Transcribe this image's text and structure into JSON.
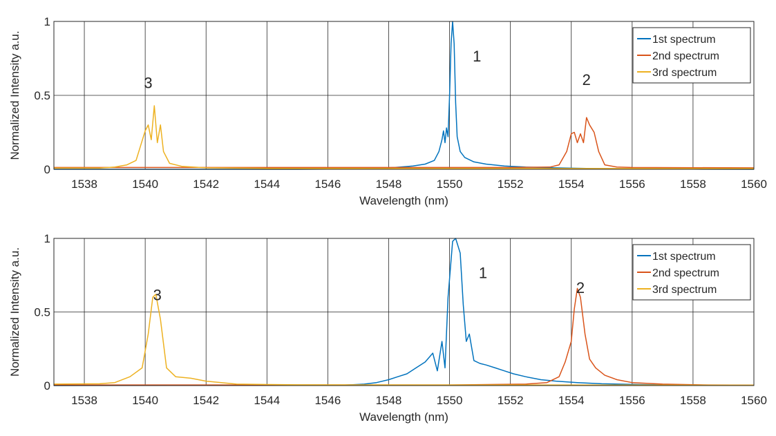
{
  "chart_data": [
    {
      "type": "line",
      "xlabel": "Wavelength (nm)",
      "ylabel": "Normalized Intensity a.u.",
      "xlim": [
        1537,
        1560
      ],
      "ylim": [
        0,
        1
      ],
      "xticks": [
        1538,
        1540,
        1542,
        1544,
        1546,
        1548,
        1550,
        1552,
        1554,
        1556,
        1558,
        1560
      ],
      "yticks": [
        0,
        0.5,
        1
      ],
      "ytick_labels": [
        "0",
        "0.5",
        "1"
      ],
      "grid": true,
      "legend_position": "top-right",
      "series": [
        {
          "name": "1st spectrum",
          "color": "#0072BD",
          "points": [
            [
              1537,
              0.0
            ],
            [
              1545,
              0.0
            ],
            [
              1546.5,
              0.002
            ],
            [
              1547.5,
              0.006
            ],
            [
              1548.2,
              0.012
            ],
            [
              1548.8,
              0.022
            ],
            [
              1549.2,
              0.035
            ],
            [
              1549.5,
              0.06
            ],
            [
              1549.65,
              0.12
            ],
            [
              1549.75,
              0.2
            ],
            [
              1549.8,
              0.26
            ],
            [
              1549.85,
              0.18
            ],
            [
              1549.9,
              0.28
            ],
            [
              1549.95,
              0.22
            ],
            [
              1550.0,
              0.5
            ],
            [
              1550.05,
              0.85
            ],
            [
              1550.1,
              1.0
            ],
            [
              1550.15,
              0.85
            ],
            [
              1550.2,
              0.45
            ],
            [
              1550.25,
              0.22
            ],
            [
              1550.35,
              0.12
            ],
            [
              1550.5,
              0.08
            ],
            [
              1550.8,
              0.05
            ],
            [
              1551.2,
              0.035
            ],
            [
              1551.8,
              0.022
            ],
            [
              1552.5,
              0.015
            ],
            [
              1553.5,
              0.01
            ],
            [
              1554.5,
              0.006
            ],
            [
              1556,
              0.003
            ],
            [
              1558,
              0.001
            ],
            [
              1560,
              0.0
            ]
          ]
        },
        {
          "name": "2nd spectrum",
          "color": "#D95319",
          "points": [
            [
              1537,
              0.012
            ],
            [
              1548,
              0.012
            ],
            [
              1552,
              0.012
            ],
            [
              1553.3,
              0.015
            ],
            [
              1553.6,
              0.03
            ],
            [
              1553.85,
              0.12
            ],
            [
              1554.0,
              0.24
            ],
            [
              1554.1,
              0.25
            ],
            [
              1554.2,
              0.18
            ],
            [
              1554.3,
              0.24
            ],
            [
              1554.4,
              0.18
            ],
            [
              1554.5,
              0.35
            ],
            [
              1554.6,
              0.3
            ],
            [
              1554.75,
              0.25
            ],
            [
              1554.9,
              0.12
            ],
            [
              1555.1,
              0.03
            ],
            [
              1555.5,
              0.015
            ],
            [
              1556,
              0.012
            ],
            [
              1560,
              0.01
            ]
          ]
        },
        {
          "name": "3rd spectrum",
          "color": "#EDB120",
          "points": [
            [
              1537,
              0.008
            ],
            [
              1538.5,
              0.008
            ],
            [
              1539.0,
              0.015
            ],
            [
              1539.4,
              0.03
            ],
            [
              1539.7,
              0.06
            ],
            [
              1539.85,
              0.16
            ],
            [
              1540.0,
              0.26
            ],
            [
              1540.1,
              0.3
            ],
            [
              1540.2,
              0.2
            ],
            [
              1540.3,
              0.43
            ],
            [
              1540.4,
              0.18
            ],
            [
              1540.5,
              0.3
            ],
            [
              1540.6,
              0.12
            ],
            [
              1540.8,
              0.04
            ],
            [
              1541.2,
              0.02
            ],
            [
              1542,
              0.01
            ],
            [
              1544,
              0.006
            ],
            [
              1550,
              0.005
            ],
            [
              1560,
              0.005
            ]
          ]
        }
      ],
      "annotations": [
        {
          "text": "1",
          "x": 1550.9,
          "y": 0.73
        },
        {
          "text": "2",
          "x": 1554.5,
          "y": 0.57
        },
        {
          "text": "3",
          "x": 1540.1,
          "y": 0.55
        }
      ]
    },
    {
      "type": "line",
      "xlabel": "Wavelength (nm)",
      "ylabel": "Normalized Intensity a.u.",
      "xlim": [
        1537,
        1560
      ],
      "ylim": [
        0,
        1
      ],
      "xticks": [
        1538,
        1540,
        1542,
        1544,
        1546,
        1548,
        1550,
        1552,
        1554,
        1556,
        1558,
        1560
      ],
      "yticks": [
        0,
        0.5,
        1
      ],
      "ytick_labels": [
        "0",
        "0.5",
        "1"
      ],
      "grid": true,
      "legend_position": "top-right",
      "series": [
        {
          "name": "1st spectrum",
          "color": "#0072BD",
          "points": [
            [
              1537,
              0.0
            ],
            [
              1546.5,
              0.003
            ],
            [
              1547.2,
              0.01
            ],
            [
              1547.6,
              0.02
            ],
            [
              1548.0,
              0.04
            ],
            [
              1548.3,
              0.06
            ],
            [
              1548.6,
              0.08
            ],
            [
              1548.9,
              0.12
            ],
            [
              1549.2,
              0.16
            ],
            [
              1549.45,
              0.22
            ],
            [
              1549.6,
              0.1
            ],
            [
              1549.75,
              0.3
            ],
            [
              1549.85,
              0.12
            ],
            [
              1549.95,
              0.6
            ],
            [
              1550.1,
              0.98
            ],
            [
              1550.2,
              1.0
            ],
            [
              1550.35,
              0.9
            ],
            [
              1550.45,
              0.55
            ],
            [
              1550.55,
              0.3
            ],
            [
              1550.65,
              0.35
            ],
            [
              1550.8,
              0.17
            ],
            [
              1551.0,
              0.15
            ],
            [
              1551.2,
              0.14
            ],
            [
              1551.5,
              0.12
            ],
            [
              1551.8,
              0.1
            ],
            [
              1552.1,
              0.08
            ],
            [
              1552.5,
              0.06
            ],
            [
              1553.0,
              0.04
            ],
            [
              1553.5,
              0.03
            ],
            [
              1554.2,
              0.02
            ],
            [
              1555,
              0.012
            ],
            [
              1556.5,
              0.006
            ],
            [
              1558,
              0.003
            ],
            [
              1560,
              0.002
            ]
          ]
        },
        {
          "name": "2nd spectrum",
          "color": "#D95319",
          "points": [
            [
              1537,
              0.004
            ],
            [
              1550,
              0.004
            ],
            [
              1552.5,
              0.01
            ],
            [
              1553.2,
              0.02
            ],
            [
              1553.6,
              0.06
            ],
            [
              1553.8,
              0.16
            ],
            [
              1554.0,
              0.3
            ],
            [
              1554.1,
              0.52
            ],
            [
              1554.2,
              0.66
            ],
            [
              1554.3,
              0.6
            ],
            [
              1554.45,
              0.35
            ],
            [
              1554.6,
              0.18
            ],
            [
              1554.8,
              0.12
            ],
            [
              1555.1,
              0.07
            ],
            [
              1555.5,
              0.04
            ],
            [
              1556,
              0.02
            ],
            [
              1557,
              0.01
            ],
            [
              1558.5,
              0.004
            ],
            [
              1560,
              0.003
            ]
          ]
        },
        {
          "name": "3rd spectrum",
          "color": "#EDB120",
          "points": [
            [
              1537,
              0.01
            ],
            [
              1538.5,
              0.012
            ],
            [
              1539.0,
              0.02
            ],
            [
              1539.5,
              0.06
            ],
            [
              1539.9,
              0.12
            ],
            [
              1540.1,
              0.35
            ],
            [
              1540.25,
              0.6
            ],
            [
              1540.35,
              0.62
            ],
            [
              1540.5,
              0.45
            ],
            [
              1540.7,
              0.12
            ],
            [
              1541.0,
              0.06
            ],
            [
              1541.5,
              0.05
            ],
            [
              1542,
              0.03
            ],
            [
              1543,
              0.01
            ],
            [
              1545,
              0.005
            ],
            [
              1550,
              0.004
            ],
            [
              1560,
              0.003
            ]
          ]
        }
      ],
      "annotations": [
        {
          "text": "1",
          "x": 1551.1,
          "y": 0.73
        },
        {
          "text": "2",
          "x": 1554.3,
          "y": 0.63
        },
        {
          "text": "3",
          "x": 1540.4,
          "y": 0.58
        }
      ]
    }
  ]
}
